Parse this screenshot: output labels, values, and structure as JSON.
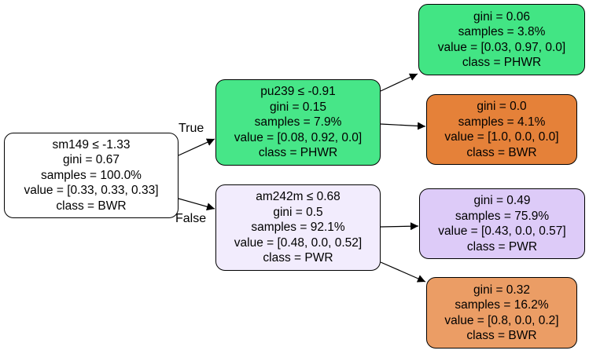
{
  "tree": {
    "root": {
      "fill": "#ffffff",
      "lines": [
        "sm149 ≤ -1.33",
        "gini = 0.67",
        "samples = 100.0%",
        "value = [0.33, 0.33, 0.33]",
        "class = BWR"
      ]
    },
    "left": {
      "fill": "#47e688",
      "lines": [
        "pu239 ≤ -0.91",
        "gini = 0.15",
        "samples = 7.9%",
        "value = [0.08, 0.92, 0.0]",
        "class = PHWR"
      ]
    },
    "right": {
      "fill": "#f2ecfd",
      "lines": [
        "am242m ≤ 0.68",
        "gini = 0.5",
        "samples = 92.1%",
        "value = [0.48, 0.0, 0.52]",
        "class = PWR"
      ]
    },
    "leaf_ll": {
      "fill": "#42e584",
      "lines": [
        "gini = 0.06",
        "samples = 3.8%",
        "value = [0.03, 0.97, 0.0]",
        "class = PHWR"
      ]
    },
    "leaf_lr": {
      "fill": "#e58139",
      "lines": [
        "gini = 0.0",
        "samples = 4.1%",
        "value = [1.0, 0.0, 0.0]",
        "class = BWR"
      ]
    },
    "leaf_rl": {
      "fill": "#ddcbf8",
      "lines": [
        "gini = 0.49",
        "samples = 75.9%",
        "value = [0.43, 0.0, 0.57]",
        "class = PWR"
      ]
    },
    "leaf_rr": {
      "fill": "#eb9d65",
      "lines": [
        "gini = 0.32",
        "samples = 16.2%",
        "value = [0.8, 0.0, 0.2]",
        "class = BWR"
      ]
    },
    "edge_labels": {
      "true": "True",
      "false": "False"
    }
  }
}
